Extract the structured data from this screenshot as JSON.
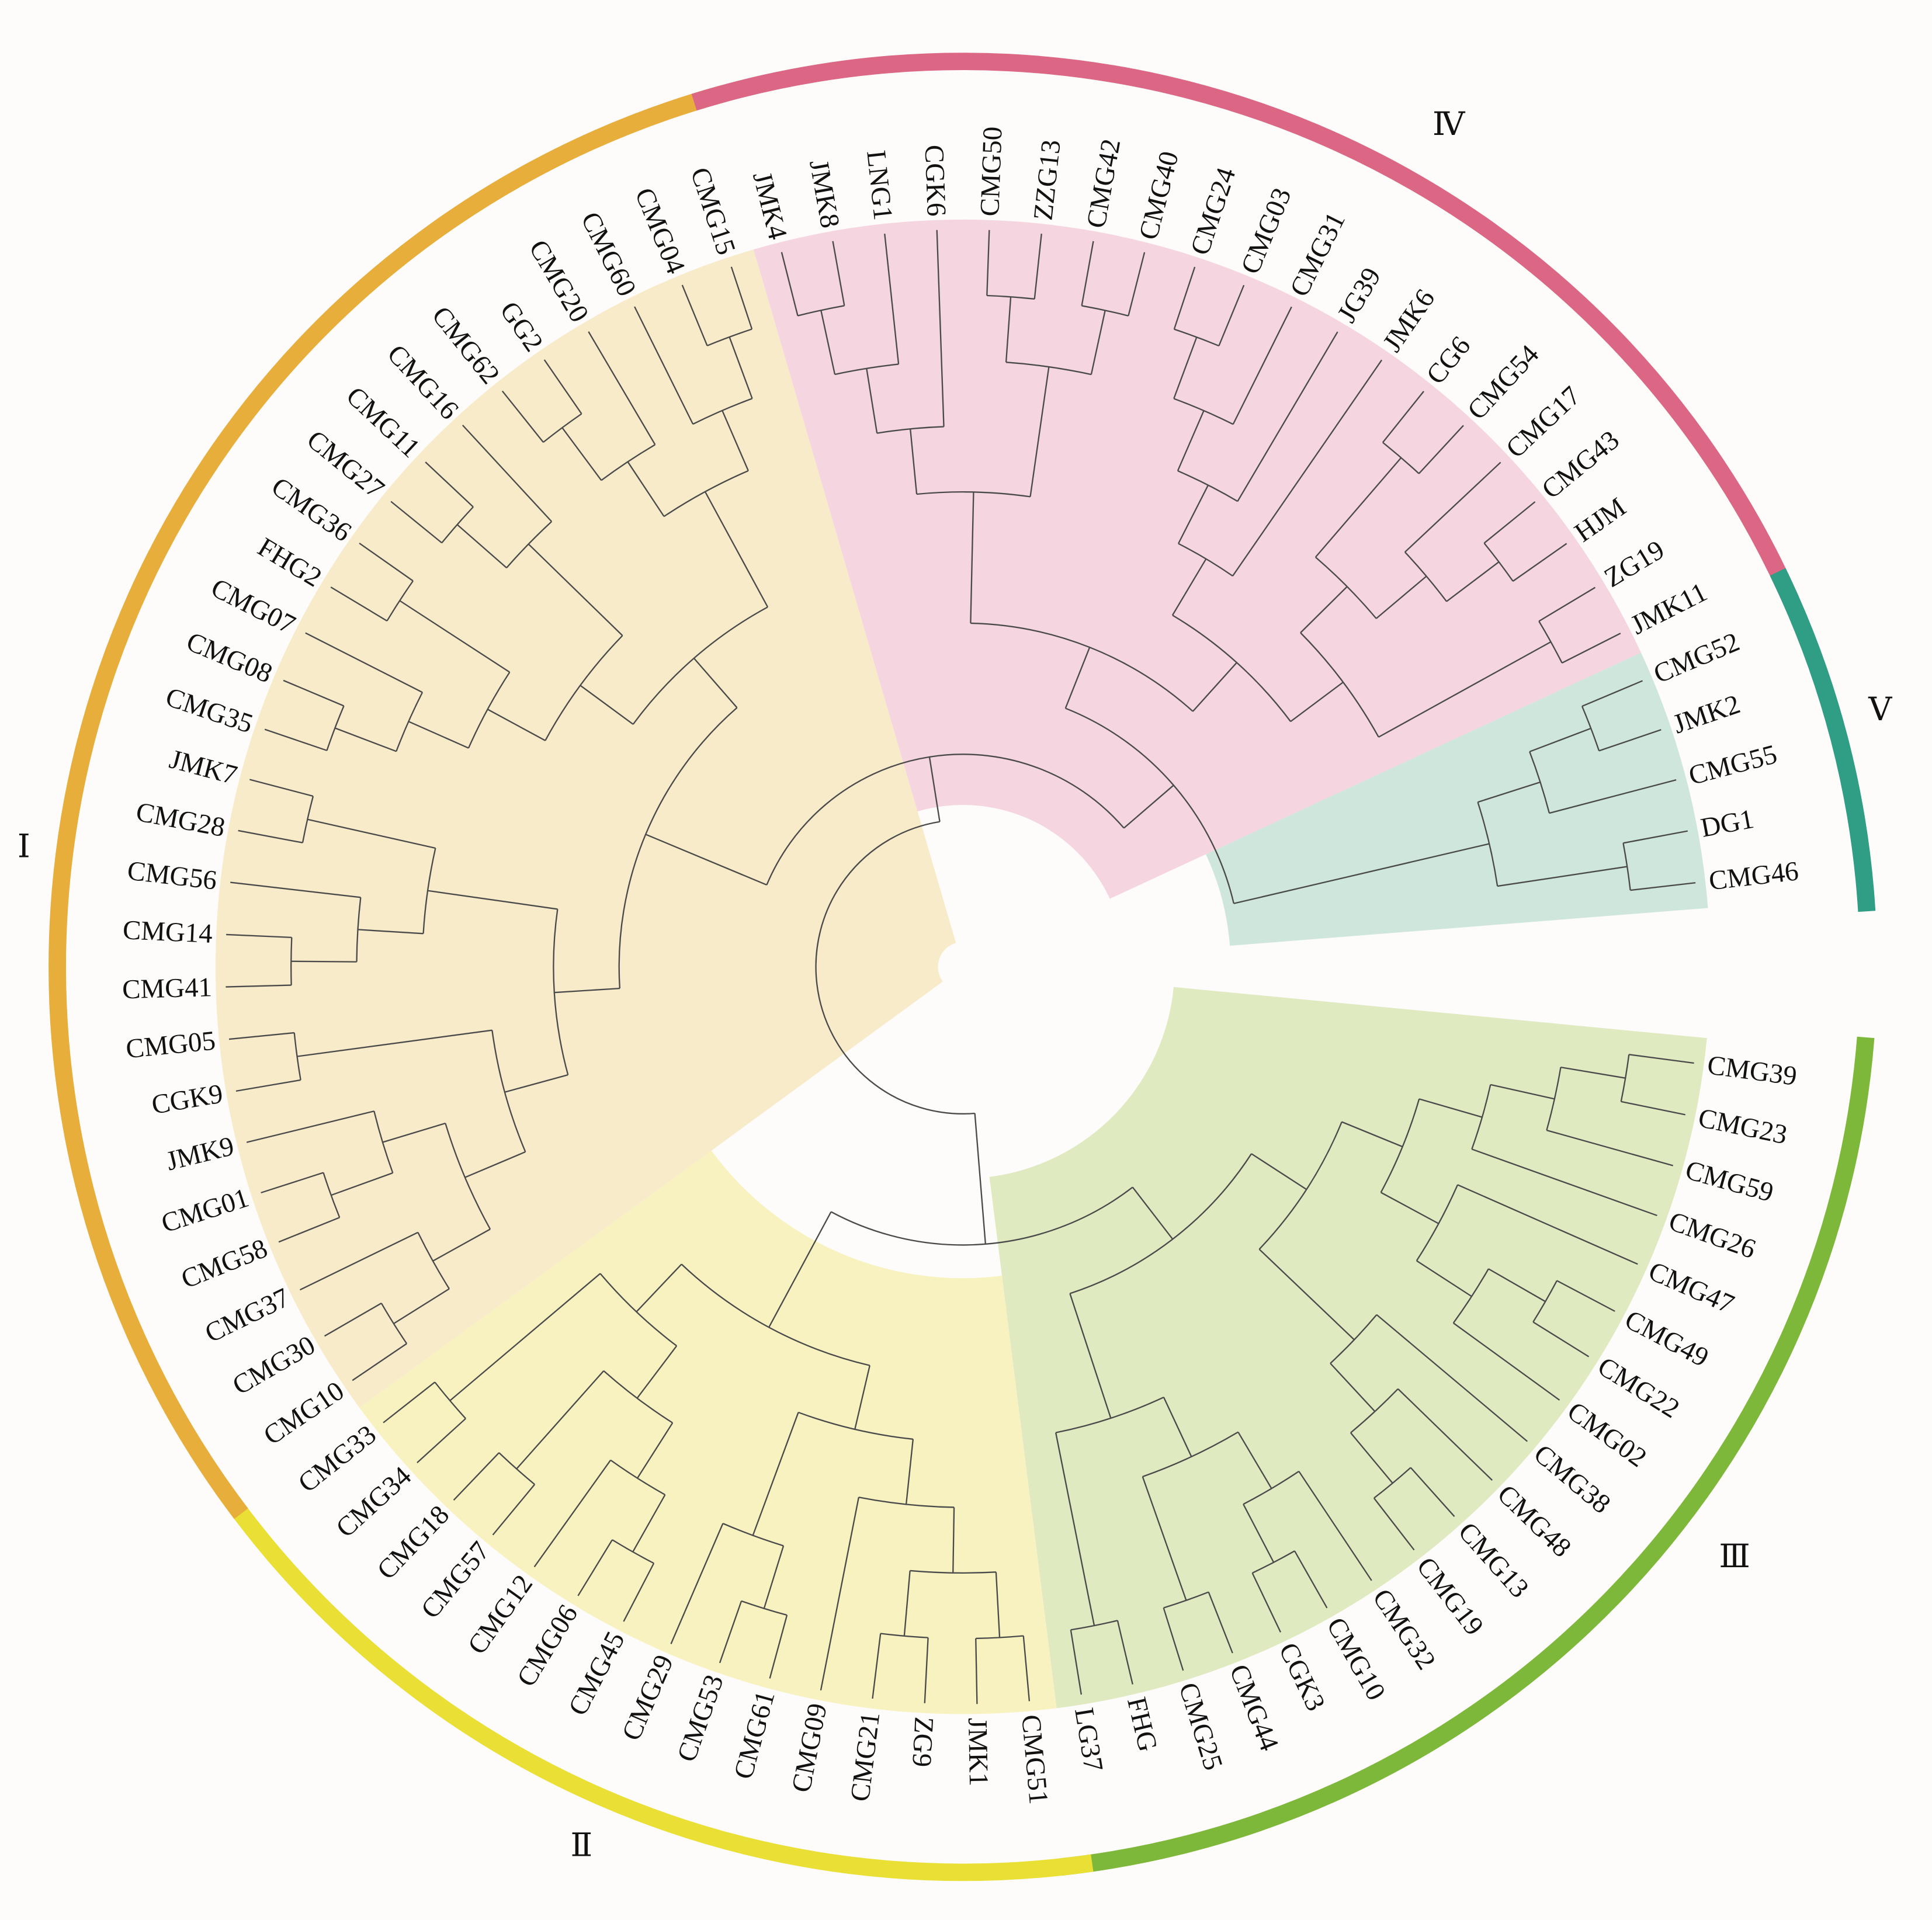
{
  "figure": {
    "type": "circular-dendrogram",
    "root": [
      [
        "III",
        "II"
      ],
      [
        "I",
        [
          "IV",
          "V"
        ]
      ]
    ]
  },
  "clades": [
    {
      "id": "III",
      "label": "Ⅲ",
      "ring_color": "#7db83a",
      "fill_color": "#dfeac1",
      "leaves": [
        "CMG39",
        "CMG23",
        "CMG59",
        "CMG26",
        "CMG47",
        "CMG49",
        "CMG22",
        "CMG02",
        "CMG38",
        "CMG48",
        "CMG13",
        "CMG19",
        "CMG32",
        "CMG10",
        "CGK3",
        "CMG44",
        "CMG25",
        "FHG",
        "LG37"
      ],
      "tree": [
        [
          [
            [
              [
                [
                  0,
                  1
                ],
                2
              ],
              3
            ],
            [
              4,
              [
                [
                  5,
                  6
                ],
                7
              ]
            ]
          ],
          [
            8,
            [
              9,
              [
                10,
                11
              ]
            ]
          ]
        ],
        [
          [
            [
              12,
              [
                13,
                14
              ]
            ],
            [
              15,
              16
            ]
          ],
          [
            17,
            18
          ]
        ]
      ]
    },
    {
      "id": "II",
      "label": "Ⅱ",
      "ring_color": "#e9df35",
      "fill_color": "#f8f2c0",
      "leaves": [
        "CMG51",
        "JMK1",
        "ZG9",
        "CMG21",
        "CMG09",
        "CMG61",
        "CMG53",
        "CMG29",
        "CMG45",
        "CMG06",
        "CMG12",
        "CMG57",
        "CMG18",
        "CMG34",
        "CMG33"
      ],
      "tree": [
        [
          [
            [
              [
                0,
                1
              ],
              [
                2,
                3
              ]
            ],
            4
          ],
          [
            [
              5,
              6
            ],
            7
          ]
        ],
        [
          [
            [
              [
                8,
                9
              ],
              10
            ],
            [
              11,
              12
            ]
          ],
          [
            13,
            14
          ]
        ]
      ]
    },
    {
      "id": "I",
      "label": "Ⅰ",
      "ring_color": "#e8ae3c",
      "fill_color": "#f8ebca",
      "leaves": [
        "CMG10",
        "CMG30",
        "CMG37",
        "CMG58",
        "CMG01",
        "JMK9",
        "CGK9",
        "CMG05",
        "CMG41",
        "CMG14",
        "CMG56",
        "CMG28",
        "JMK7",
        "CMG35",
        "CMG08",
        "CMG07",
        "FHG2",
        "CMG36",
        "CMG27",
        "CMG11",
        "CMG16",
        "CMG62",
        "GG2",
        "CMG20",
        "CMG60",
        "CMG04",
        "CMG15"
      ],
      "tree": [
        [
          [
            [
              [
                [
                  0,
                  1
                ],
                2
              ],
              [
                [
                  3,
                  4
                ],
                5
              ]
            ],
            [
              6,
              7
            ]
          ],
          [
            [
              [
                8,
                9
              ],
              10
            ],
            [
              11,
              12
            ]
          ]
        ],
        [
          [
            [
              [
                [
                  13,
                  14
                ],
                15
              ],
              [
                16,
                17
              ]
            ],
            [
              [
                18,
                19
              ],
              20
            ]
          ],
          [
            [
              [
                21,
                22
              ],
              23
            ],
            [
              24,
              [
                25,
                26
              ]
            ]
          ]
        ]
      ]
    },
    {
      "id": "IV",
      "label": "Ⅳ",
      "ring_color": "#dc6784",
      "fill_color": "#f5d6e0",
      "leaves": [
        "JMK4",
        "JMK8",
        "LNG1",
        "CGK6",
        "CMG50",
        "ZZG13",
        "CMG42",
        "CMG40",
        "CMG24",
        "CMG03",
        "CMG31",
        "JG39",
        "JMK6",
        "CG6",
        "CMG54",
        "CMG17",
        "CMG43",
        "HJM",
        "ZG19",
        "JMK11"
      ],
      "tree": [
        [
          [
            [
              [
                0,
                1
              ],
              2
            ],
            3
          ],
          [
            [
              4,
              5
            ],
            [
              6,
              7
            ]
          ]
        ],
        [
          [
            [
              [
                [
                  8,
                  9
                ],
                10
              ],
              11
            ],
            12
          ],
          [
            [
              [
                13,
                14
              ],
              [
                15,
                [
                  16,
                  17
                ]
              ]
            ],
            [
              18,
              19
            ]
          ]
        ]
      ]
    },
    {
      "id": "V",
      "label": "Ⅴ",
      "ring_color": "#2f9e84",
      "fill_color": "#cfe6dc",
      "leaves": [
        "CMG52",
        "JMK2",
        "CMG55",
        "DG1",
        "CMG46"
      ],
      "tree": [
        [
          [
            0,
            1
          ],
          2
        ],
        [
          3,
          4
        ]
      ]
    }
  ]
}
